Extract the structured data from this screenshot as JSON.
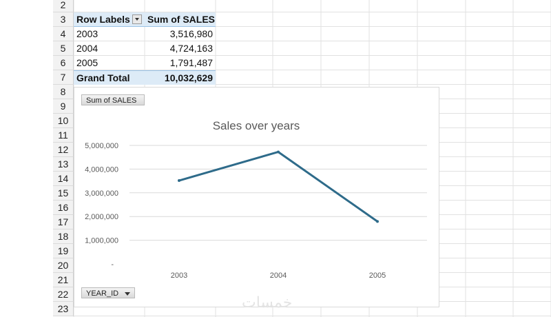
{
  "row_numbers": [
    "2",
    "3",
    "4",
    "5",
    "6",
    "7",
    "8",
    "9",
    "10",
    "11",
    "12",
    "13",
    "14",
    "15",
    "16",
    "17",
    "18",
    "19",
    "20",
    "21",
    "22",
    "23"
  ],
  "pivot": {
    "row_labels_header": "Row Labels",
    "value_header": "Sum of SALES",
    "rows": [
      {
        "label": "2003",
        "value": "3,516,980"
      },
      {
        "label": "2004",
        "value": "4,724,163"
      },
      {
        "label": "2005",
        "value": "1,791,487"
      }
    ],
    "grand_total_label": "Grand Total",
    "grand_total_value": "10,032,629"
  },
  "chart_buttons": {
    "value_field": "Sum of SALES",
    "axis_field": "YEAR_ID"
  },
  "watermark": "خمسات",
  "colors": {
    "line": "#2e6b8a",
    "pivot_header_fill": "#ddebf7",
    "gridline": "#d9d9d9"
  },
  "chart_data": {
    "type": "line",
    "title": "Sales over years",
    "categories": [
      "2003",
      "2004",
      "2005"
    ],
    "values": [
      3516980,
      4724163,
      1791487
    ],
    "ylim": [
      0,
      5000000
    ],
    "yticks": [
      0,
      1000000,
      2000000,
      3000000,
      4000000,
      5000000
    ],
    "ytick_labels": [
      "-",
      "1,000,000",
      "2,000,000",
      "3,000,000",
      "4,000,000",
      "5,000,000"
    ],
    "grid": true,
    "legend": "none"
  }
}
